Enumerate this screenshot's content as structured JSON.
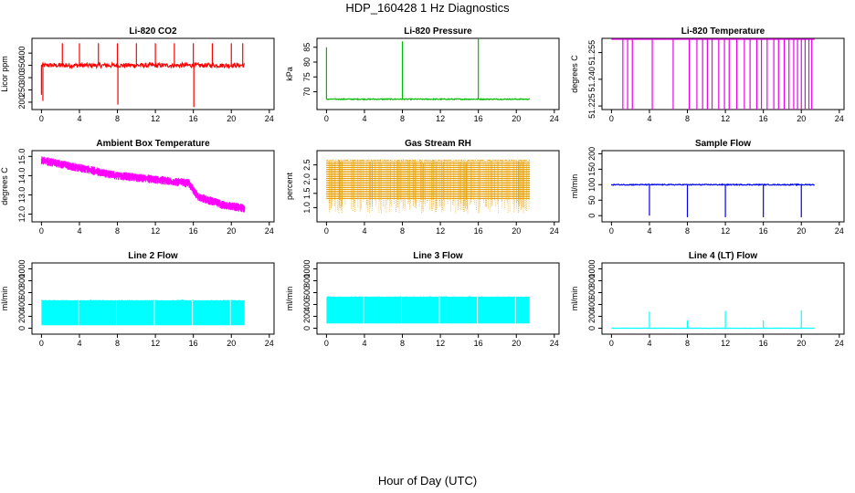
{
  "figure": {
    "title": "HDP_160428  1 Hz Diagnostics",
    "xlabel": "Hour of Day (UTC)"
  },
  "chart_data": [
    {
      "type": "line",
      "title": "Li-820 CO2",
      "ylabel": "Licor ppm",
      "color": "#ff0000",
      "xlim": [
        -1,
        24.5
      ],
      "ylim": [
        170,
        460
      ],
      "xticks": [
        "0",
        "4",
        "8",
        "12",
        "16",
        "20",
        "24"
      ],
      "yticks": [
        "200",
        "250",
        "300",
        "350",
        "400"
      ],
      "baseline": 350,
      "x_range": [
        0,
        21.4
      ],
      "spikes": [
        {
          "x": 0.0,
          "y": 230
        },
        {
          "x": 0.15,
          "y": 205
        },
        {
          "x": 2.2,
          "y": 440
        },
        {
          "x": 4.0,
          "y": 440
        },
        {
          "x": 6.0,
          "y": 440
        },
        {
          "x": 8.0,
          "y": 440
        },
        {
          "x": 8.05,
          "y": 190
        },
        {
          "x": 10.0,
          "y": 440
        },
        {
          "x": 12.0,
          "y": 440
        },
        {
          "x": 14.0,
          "y": 440
        },
        {
          "x": 16.0,
          "y": 440
        },
        {
          "x": 16.05,
          "y": 180
        },
        {
          "x": 18.0,
          "y": 440
        },
        {
          "x": 20.0,
          "y": 440
        },
        {
          "x": 21.2,
          "y": 440
        }
      ],
      "noise": 18
    },
    {
      "type": "line",
      "title": "Li-820 Pressure",
      "ylabel": "kPa",
      "color": "#00bb00",
      "xlim": [
        -1,
        24.5
      ],
      "ylim": [
        64,
        88
      ],
      "xticks": [
        "0",
        "4",
        "8",
        "12",
        "16",
        "20",
        "24"
      ],
      "yticks": [
        "70",
        "75",
        "80",
        "85"
      ],
      "baseline": 67.5,
      "x_range": [
        0,
        21.4
      ],
      "spikes": [
        {
          "x": 0.0,
          "y": 85
        },
        {
          "x": 8.0,
          "y": 87
        },
        {
          "x": 16.0,
          "y": 88
        }
      ],
      "noise": 0.3
    },
    {
      "type": "line",
      "title": "Li-820 Temperature",
      "ylabel": "degrees C",
      "color": "#ee00ee",
      "xlim": [
        -1,
        24.5
      ],
      "ylim": [
        51.223,
        51.263
      ],
      "xticks": [
        "0",
        "4",
        "8",
        "12",
        "16",
        "20",
        "24"
      ],
      "yticks": [
        "51.225",
        "51.240",
        "51.255"
      ],
      "baseline": 51.2625,
      "x_range": [
        0,
        21.4
      ],
      "drops": [
        1.2,
        1.7,
        2.2,
        4.3,
        6.5,
        8.2,
        9.0,
        9.6,
        10.1,
        10.6,
        11.3,
        11.9,
        12.4,
        13.2,
        14.0,
        14.6,
        15.3,
        15.8,
        16.4,
        17.1,
        17.6,
        18.2,
        18.7,
        19.2,
        19.6,
        20.0,
        20.4,
        20.8,
        21.1
      ],
      "noise": 0
    },
    {
      "type": "line",
      "title": "Ambient Box Temperature",
      "ylabel": "degrees C",
      "color": "#ff00ff",
      "xlim": [
        -1,
        24.5
      ],
      "ylim": [
        11.6,
        15.3
      ],
      "xticks": [
        "0",
        "4",
        "8",
        "12",
        "16",
        "20",
        "24"
      ],
      "yticks": [
        "12.0",
        "13.0",
        "14.0",
        "15.0"
      ],
      "trend": [
        [
          0,
          14.8
        ],
        [
          4,
          14.4
        ],
        [
          8,
          14.0
        ],
        [
          12,
          13.8
        ],
        [
          15.5,
          13.6
        ],
        [
          16.5,
          12.9
        ],
        [
          19,
          12.5
        ],
        [
          21.4,
          12.3
        ]
      ],
      "x_range": [
        0,
        21.4
      ],
      "noise": 0.45
    },
    {
      "type": "line",
      "title": "Gas Stream RH",
      "ylabel": "percent",
      "color": "#e8a000",
      "xlim": [
        -1,
        24.5
      ],
      "ylim": [
        0.5,
        3.0
      ],
      "xticks": [
        "0",
        "4",
        "8",
        "12",
        "16",
        "20",
        "24"
      ],
      "yticks": [
        "1.0",
        "1.5",
        "2.0",
        "2.5"
      ],
      "band": [
        1.3,
        2.7
      ],
      "x_range": [
        0,
        21.4
      ],
      "noise": 0
    },
    {
      "type": "line",
      "title": "Sample Flow",
      "ylabel": "ml/min",
      "color": "#0000ee",
      "xlim": [
        -1,
        24.5
      ],
      "ylim": [
        -20,
        210
      ],
      "xticks": [
        "0",
        "4",
        "8",
        "12",
        "16",
        "20",
        "24"
      ],
      "yticks": [
        "0",
        "50",
        "100",
        "150",
        "200"
      ],
      "baseline": 100,
      "x_range": [
        0,
        21.4
      ],
      "spikes": [
        {
          "x": 4.0,
          "y": 0
        },
        {
          "x": 8.0,
          "y": -5
        },
        {
          "x": 12.0,
          "y": -5
        },
        {
          "x": 16.0,
          "y": -5
        },
        {
          "x": 20.0,
          "y": -5
        }
      ],
      "noise": 3
    },
    {
      "type": "area",
      "title": "Line 2 Flow",
      "ylabel": "ml/min",
      "color": "#00ffff",
      "xlim": [
        -1,
        24.5
      ],
      "ylim": [
        -100,
        1100
      ],
      "xticks": [
        "0",
        "4",
        "8",
        "12",
        "16",
        "20",
        "24"
      ],
      "yticks": [
        "0",
        "200",
        "400",
        "600",
        "800",
        "1000"
      ],
      "band": [
        50,
        470
      ],
      "x_range": [
        0,
        21.4
      ],
      "gaps": [
        3.9,
        7.9,
        11.9,
        15.9,
        19.9
      ]
    },
    {
      "type": "area",
      "title": "Line 3 Flow",
      "ylabel": "ml/min",
      "color": "#00ffff",
      "xlim": [
        -1,
        24.5
      ],
      "ylim": [
        -100,
        1100
      ],
      "xticks": [
        "0",
        "4",
        "8",
        "12",
        "16",
        "20",
        "24"
      ],
      "yticks": [
        "0",
        "200",
        "400",
        "600",
        "800",
        "1000"
      ],
      "band": [
        80,
        530
      ],
      "x_range": [
        0,
        21.4
      ],
      "gaps": [
        3.9,
        7.9,
        11.9,
        15.9,
        19.9
      ]
    },
    {
      "type": "line",
      "title": "Line 4 (LT) Flow",
      "ylabel": "ml/min",
      "color": "#00ffff",
      "xlim": [
        -1,
        24.5
      ],
      "ylim": [
        -100,
        1100
      ],
      "xticks": [
        "0",
        "4",
        "8",
        "12",
        "16",
        "20",
        "24"
      ],
      "yticks": [
        "0",
        "200",
        "400",
        "600",
        "800",
        "1000"
      ],
      "baseline": 0,
      "x_range": [
        0,
        21.4
      ],
      "spikes": [
        {
          "x": 4.0,
          "y": 280
        },
        {
          "x": 8.0,
          "y": 130
        },
        {
          "x": 12.0,
          "y": 290
        },
        {
          "x": 16.0,
          "y": 130
        },
        {
          "x": 20.0,
          "y": 300
        }
      ],
      "noise": 4
    }
  ]
}
